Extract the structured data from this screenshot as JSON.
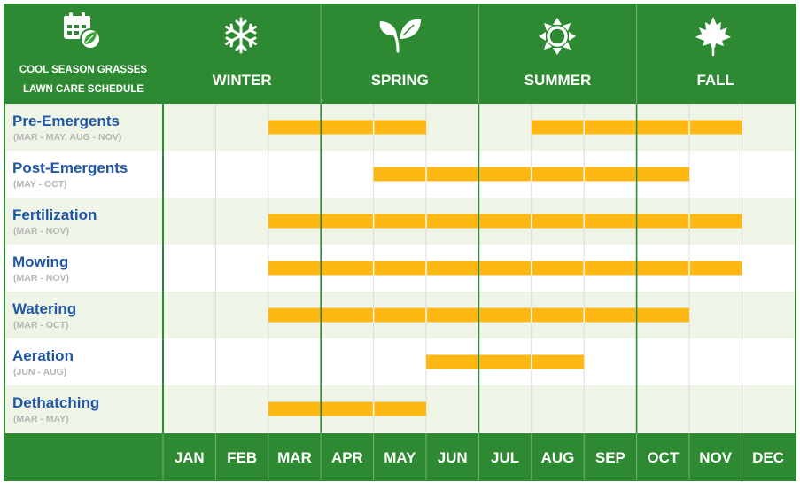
{
  "header": {
    "title_line1": "COOL SEASON GRASSES",
    "title_line2": "LAWN CARE SCHEDULE",
    "title_icon": "calendar-leaf-icon",
    "seasons": [
      {
        "label": "WINTER",
        "icon": "snowflake-icon"
      },
      {
        "label": "SPRING",
        "icon": "sprout-icon"
      },
      {
        "label": "SUMMER",
        "icon": "sun-icon"
      },
      {
        "label": "FALL",
        "icon": "maple-leaf-icon"
      }
    ]
  },
  "months": [
    "JAN",
    "FEB",
    "MAR",
    "APR",
    "MAY",
    "JUN",
    "JUL",
    "AUG",
    "SEP",
    "OCT",
    "NOV",
    "DEC"
  ],
  "colors": {
    "green": "#2e8a32",
    "bar": "#fdb813",
    "label": "#2156a5",
    "sublabel": "#b5b5b5",
    "row_alt": "#eef5e6",
    "row": "#ffffff",
    "grid": "#dcdcdc"
  },
  "chart_data": {
    "type": "gantt",
    "title": "COOL SEASON GRASSES LAWN CARE SCHEDULE",
    "categories": [
      "JAN",
      "FEB",
      "MAR",
      "APR",
      "MAY",
      "JUN",
      "JUL",
      "AUG",
      "SEP",
      "OCT",
      "NOV",
      "DEC"
    ],
    "tasks": [
      {
        "name": "Pre-Emergents",
        "range_label": "(MAR - MAY, AUG - NOV)",
        "spans": [
          [
            "MAR",
            "MAY"
          ],
          [
            "AUG",
            "NOV"
          ]
        ]
      },
      {
        "name": "Post-Emergents",
        "range_label": "(MAY - OCT)",
        "spans": [
          [
            "MAY",
            "OCT"
          ]
        ]
      },
      {
        "name": "Fertilization",
        "range_label": "(MAR - NOV)",
        "spans": [
          [
            "MAR",
            "NOV"
          ]
        ]
      },
      {
        "name": "Mowing",
        "range_label": "(MAR - NOV)",
        "spans": [
          [
            "MAR",
            "NOV"
          ]
        ]
      },
      {
        "name": "Watering",
        "range_label": "(MAR - OCT)",
        "spans": [
          [
            "MAR",
            "OCT"
          ]
        ]
      },
      {
        "name": "Aeration",
        "range_label": "(JUN - AUG)",
        "spans": [
          [
            "JUN",
            "AUG"
          ]
        ]
      },
      {
        "name": "Dethatching",
        "range_label": "(MAR - MAY)",
        "spans": [
          [
            "MAR",
            "MAY"
          ]
        ]
      }
    ]
  }
}
